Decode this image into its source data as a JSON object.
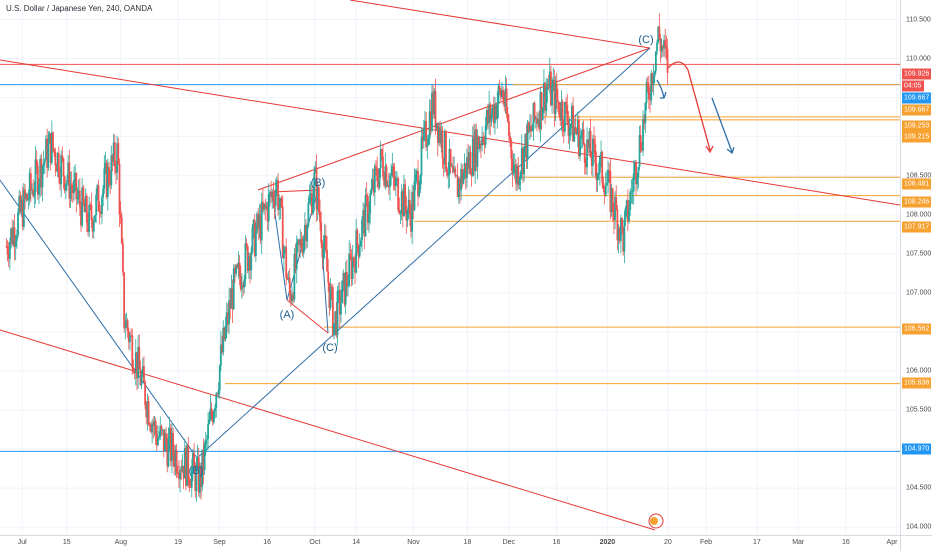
{
  "header": {
    "symbol_title": "U.S. Dollar / Japanese Yen, 240, OANDA"
  },
  "price_axis": {
    "ticks": [
      "110.500",
      "110.000",
      "109.500",
      "109.000",
      "108.500",
      "108.000",
      "107.500",
      "107.000",
      "106.500",
      "106.000",
      "105.500",
      "105.000",
      "104.500",
      "104.000"
    ],
    "tags": [
      {
        "label": "109.926",
        "color": "#ef5350"
      },
      {
        "label": "04:05",
        "color": "#ef5350"
      },
      {
        "label": "109.667",
        "color": "#2196f3"
      },
      {
        "label": "109.667",
        "color": "#f7a130"
      },
      {
        "label": "109.253",
        "color": "#f7a130"
      },
      {
        "label": "109.215",
        "color": "#f7a130"
      },
      {
        "label": "108.481",
        "color": "#f7a130"
      },
      {
        "label": "108.246",
        "color": "#f7a130"
      },
      {
        "label": "107.917",
        "color": "#f7a130"
      },
      {
        "label": "106.562",
        "color": "#f7a130"
      },
      {
        "label": "105.838",
        "color": "#f7a130"
      },
      {
        "label": "104.970",
        "color": "#2196f3"
      }
    ]
  },
  "time_axis": {
    "ticks": [
      "Jul",
      "15",
      "Aug",
      "19",
      "Sep",
      "16",
      "Oct",
      "14",
      "Nov",
      "18",
      "Dec",
      "16",
      "2020",
      "20",
      "Feb",
      "17",
      "Mar",
      "16",
      "Apr"
    ]
  },
  "wave_labels": [
    "(C)",
    "(B)",
    "(A)",
    "(C)",
    "(B)"
  ],
  "colors": {
    "up": "#26a69a",
    "down": "#ef5350",
    "trend_blue": "#2f6fa8",
    "level_orange": "#f7a130",
    "channel_red": "#e53935"
  },
  "chart_data": {
    "type": "candlestick",
    "title": "U.S. Dollar / Japanese Yen, 240, OANDA",
    "ylim": [
      103.9,
      110.75
    ],
    "x_range": [
      "2019-06-24",
      "2020-04-02"
    ],
    "anchors": [
      {
        "date": "2019-06-26",
        "price": 107.6
      },
      {
        "date": "2019-07-10",
        "price": 108.9
      },
      {
        "date": "2019-07-22",
        "price": 107.9
      },
      {
        "date": "2019-07-31",
        "price": 108.8
      },
      {
        "date": "2019-08-02",
        "price": 106.7
      },
      {
        "date": "2019-08-12",
        "price": 105.2
      },
      {
        "date": "2019-08-26",
        "price": 104.6
      },
      {
        "date": "2019-09-05",
        "price": 107.0
      },
      {
        "date": "2019-09-19",
        "price": 108.4
      },
      {
        "date": "2019-09-23",
        "price": 106.95
      },
      {
        "date": "2019-10-01",
        "price": 108.45
      },
      {
        "date": "2019-10-07",
        "price": 106.6
      },
      {
        "date": "2019-10-22",
        "price": 108.7
      },
      {
        "date": "2019-10-31",
        "price": 108.0
      },
      {
        "date": "2019-11-07",
        "price": 109.45
      },
      {
        "date": "2019-11-14",
        "price": 108.3
      },
      {
        "date": "2019-11-29",
        "price": 109.6
      },
      {
        "date": "2019-12-03",
        "price": 108.5
      },
      {
        "date": "2019-12-13",
        "price": 109.65
      },
      {
        "date": "2019-12-31",
        "price": 108.5
      },
      {
        "date": "2020-01-06",
        "price": 107.7
      },
      {
        "date": "2020-01-17",
        "price": 110.3
      },
      {
        "date": "2020-01-20",
        "price": 109.9
      }
    ],
    "horizontal_levels": [
      {
        "price": 109.926,
        "color": "#ef5350"
      },
      {
        "price": 109.667,
        "color": "#2196f3"
      },
      {
        "price": 109.667,
        "color": "#f7a130"
      },
      {
        "price": 109.253,
        "color": "#f7a130"
      },
      {
        "price": 109.215,
        "color": "#f7a130"
      },
      {
        "price": 108.481,
        "color": "#f7a130"
      },
      {
        "price": 108.246,
        "color": "#f7a130"
      },
      {
        "price": 107.917,
        "color": "#f7a130"
      },
      {
        "price": 106.562,
        "color": "#f7a130"
      },
      {
        "price": 105.838,
        "color": "#f7a130"
      },
      {
        "price": 104.97,
        "color": "#2196f3"
      }
    ]
  }
}
